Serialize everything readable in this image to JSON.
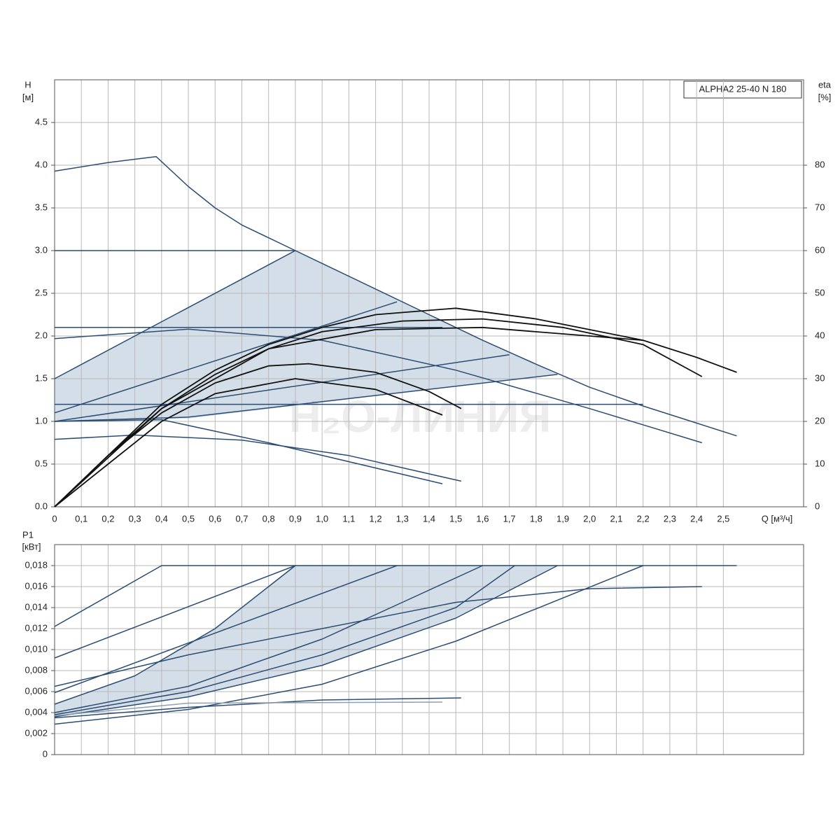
{
  "chart_data": [
    {
      "type": "line",
      "title": "ALPHA2 25-40 N 180",
      "annotation": "H₂O-ЛИНИЯ",
      "y_label": "H",
      "y_unit": "[м]",
      "y2_label": "eta",
      "y2_unit": "[%]",
      "x_label": "Q [м³/ч]",
      "xlim": [
        0,
        2.8
      ],
      "ylim": [
        0,
        5
      ],
      "y2lim": [
        0,
        100
      ],
      "grid": true,
      "xticks": [
        0,
        {
          "value": 0.1,
          "label": "0,1"
        },
        {
          "value": 0.2,
          "label": "0,2"
        },
        {
          "value": 0.3,
          "label": "0,3"
        },
        {
          "value": 0.4,
          "label": "0,4"
        },
        {
          "value": 0.5,
          "label": "0,5"
        },
        {
          "value": 0.6,
          "label": "0,6"
        },
        {
          "value": 0.7,
          "label": "0,7"
        },
        {
          "value": 0.8,
          "label": "0,8"
        },
        {
          "value": 0.9,
          "label": "0,9"
        },
        {
          "value": 1.0,
          "label": "1,0"
        },
        {
          "value": 1.1,
          "label": "1,1"
        },
        {
          "value": 1.2,
          "label": "1,2"
        },
        {
          "value": 1.3,
          "label": "1,3"
        },
        {
          "value": 1.4,
          "label": "1,4"
        },
        {
          "value": 1.5,
          "label": "1,5"
        },
        {
          "value": 1.6,
          "label": "1,6"
        },
        {
          "value": 1.7,
          "label": "1,7"
        },
        {
          "value": 1.8,
          "label": "1,8"
        },
        {
          "value": 1.9,
          "label": "1,9"
        },
        {
          "value": 2.0,
          "label": "2,0"
        },
        {
          "value": 2.1,
          "label": "2,1"
        },
        {
          "value": 2.2,
          "label": "2,2"
        },
        {
          "value": 2.3,
          "label": "2,3"
        },
        {
          "value": 2.4,
          "label": "2,4"
        },
        {
          "value": 2.5,
          "label": "2,5"
        }
      ],
      "yticks": [
        {
          "value": 0,
          "label": "0.0"
        },
        0.5,
        {
          "value": 1,
          "label": "1.0"
        },
        1.5,
        {
          "value": 2,
          "label": "2.0"
        },
        2.5,
        {
          "value": 3,
          "label": "3.0"
        },
        3.5,
        {
          "value": 4,
          "label": "4.0"
        },
        4.5
      ],
      "y2ticks": [
        0,
        10,
        20,
        30,
        40,
        50,
        60,
        70,
        80
      ],
      "series": [
        {
          "color": "#2b4d73",
          "x": [
            0,
            0.1,
            0.2,
            0.3,
            0.38,
            0.5,
            0.6,
            0.7,
            0.8,
            0.9,
            1.0,
            1.2,
            1.4,
            1.6,
            1.8,
            2.0,
            2.2,
            2.4,
            2.55
          ],
          "values": [
            3.93,
            3.98,
            4.03,
            4.07,
            4.1,
            3.75,
            3.5,
            3.3,
            3.15,
            3.0,
            2.85,
            2.55,
            2.25,
            1.95,
            1.67,
            1.4,
            1.18,
            0.98,
            0.83
          ]
        },
        {
          "color": "#2b4d73",
          "x": [
            0,
            0.9
          ],
          "values": [
            3.0,
            3.0
          ]
        },
        {
          "color": "#2b4d73",
          "x": [
            0,
            1.45
          ],
          "values": [
            2.1,
            2.1
          ]
        },
        {
          "color": "#2b4d73",
          "x": [
            0,
            2.2
          ],
          "values": [
            1.2,
            1.2
          ]
        },
        {
          "color": "#2b4d73",
          "x": [
            0,
            0.9
          ],
          "values": [
            1.5,
            3.0
          ]
        },
        {
          "color": "#2b4d73",
          "x": [
            0,
            1.28
          ],
          "values": [
            1.1,
            2.4
          ]
        },
        {
          "color": "#2b4d73",
          "x": [
            0,
            1.7
          ],
          "values": [
            1.0,
            1.78
          ]
        },
        {
          "color": "#2b4d73",
          "x": [
            0,
            0.5,
            1.88
          ],
          "values": [
            1.0,
            1.05,
            1.55
          ]
        },
        {
          "color": "#2b4d73",
          "x": [
            0,
            0.5,
            1.0,
            1.5,
            2.0,
            2.42
          ],
          "values": [
            1.97,
            2.08,
            1.95,
            1.6,
            1.15,
            0.75
          ]
        },
        {
          "color": "#2b4d73",
          "x": [
            0,
            0.3,
            0.7,
            1.1,
            1.52
          ],
          "values": [
            0.79,
            0.84,
            0.78,
            0.6,
            0.3
          ]
        },
        {
          "color": "#2b4d73",
          "x": [
            0,
            0.4,
            0.8,
            1.45
          ],
          "values": [
            1.0,
            1.02,
            0.75,
            0.27
          ]
        },
        {
          "color": "#111111",
          "axis": "y2",
          "x": [
            0,
            0.2,
            0.4,
            0.6,
            0.8,
            1.0,
            1.2,
            1.5,
            1.8,
            2.0,
            2.2,
            2.4,
            2.55
          ],
          "values": [
            0,
            12,
            24,
            32,
            38,
            42,
            45,
            46.5,
            44,
            41.5,
            39,
            35,
            31.5
          ]
        },
        {
          "color": "#111111",
          "axis": "y2",
          "x": [
            0,
            0.2,
            0.4,
            0.6,
            0.8,
            1.0,
            1.3,
            1.6,
            1.9,
            2.2,
            2.42
          ],
          "values": [
            0,
            12,
            23,
            31,
            37,
            41,
            43.5,
            44,
            42,
            38,
            30.5
          ]
        },
        {
          "color": "#111111",
          "axis": "y2",
          "x": [
            0,
            0.4,
            0.8,
            1.2,
            1.6,
            2.0,
            2.2
          ],
          "values": [
            0,
            23,
            37,
            41.5,
            42,
            40,
            39
          ]
        },
        {
          "color": "#111111",
          "axis": "y2",
          "x": [
            0,
            0.2,
            0.4,
            0.6,
            0.8,
            0.95,
            1.2,
            1.4,
            1.52
          ],
          "values": [
            0,
            12,
            22,
            29,
            33,
            33.5,
            31.5,
            27,
            23
          ]
        },
        {
          "color": "#111111",
          "axis": "y2",
          "x": [
            0,
            0.2,
            0.4,
            0.6,
            0.9,
            1.2,
            1.45
          ],
          "values": [
            0,
            10,
            20,
            26.5,
            30,
            27.5,
            21.5
          ]
        }
      ]
    },
    {
      "type": "line",
      "y_label": "P1",
      "y_unit": "[кВт]",
      "xlim": [
        0,
        2.8
      ],
      "ylim": [
        0,
        0.02
      ],
      "grid": true,
      "yticks": [
        0,
        {
          "value": 0.002,
          "label": "0,002"
        },
        {
          "value": 0.004,
          "label": "0,004"
        },
        {
          "value": 0.006,
          "label": "0,006"
        },
        {
          "value": 0.008,
          "label": "0,008"
        },
        {
          "value": 0.01,
          "label": "0,010"
        },
        {
          "value": 0.012,
          "label": "0,012"
        },
        {
          "value": 0.014,
          "label": "0,014"
        },
        {
          "value": 0.016,
          "label": "0,016"
        },
        {
          "value": 0.018,
          "label": "0,018"
        }
      ],
      "series": [
        {
          "color": "#2b4d73",
          "x": [
            0,
            0.4,
            2.55
          ],
          "values": [
            0.0122,
            0.018,
            0.018
          ]
        },
        {
          "color": "#2b4d73",
          "x": [
            0,
            0.9
          ],
          "values": [
            0.0092,
            0.018
          ]
        },
        {
          "color": "#2b4d73",
          "x": [
            0,
            0.3,
            0.6,
            0.9
          ],
          "values": [
            0.0048,
            0.0075,
            0.012,
            0.018
          ]
        },
        {
          "color": "#2b4d73",
          "x": [
            0,
            0.5,
            1.0,
            1.3,
            1.6
          ],
          "values": [
            0.004,
            0.0065,
            0.011,
            0.0145,
            0.018
          ]
        },
        {
          "color": "#2b4d73",
          "x": [
            0,
            0.5,
            1.0,
            1.5,
            1.72
          ],
          "values": [
            0.0038,
            0.006,
            0.0095,
            0.014,
            0.018
          ]
        },
        {
          "color": "#2b4d73",
          "x": [
            0,
            0.5,
            1.0,
            1.5,
            1.88
          ],
          "values": [
            0.0036,
            0.0055,
            0.0085,
            0.013,
            0.018
          ]
        },
        {
          "color": "#2b4d73",
          "x": [
            0,
            0.5,
            1.0,
            1.5,
            2.2
          ],
          "values": [
            0.0029,
            0.0043,
            0.0067,
            0.0108,
            0.018
          ]
        },
        {
          "color": "#2b4d73",
          "x": [
            0,
            0.5,
            1.0,
            1.5,
            2.0,
            2.42
          ],
          "values": [
            0.0065,
            0.0095,
            0.012,
            0.0145,
            0.0158,
            0.016
          ]
        },
        {
          "color": "#2b4d73",
          "x": [
            0,
            1.28
          ],
          "values": [
            0.0059,
            0.018
          ]
        },
        {
          "color": "#2b4d73",
          "x": [
            0,
            0.5,
            1.0,
            1.52
          ],
          "values": [
            0.0035,
            0.0045,
            0.0052,
            0.0054
          ]
        },
        {
          "color": "#8da0b4",
          "x": [
            0,
            0.5,
            1.45
          ],
          "values": [
            0.0037,
            0.0049,
            0.005
          ]
        }
      ]
    }
  ]
}
